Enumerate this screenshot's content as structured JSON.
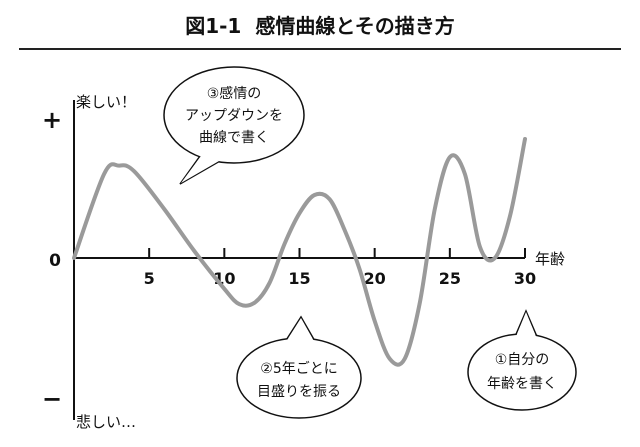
{
  "figure": {
    "number": "図1-1",
    "title": "感情曲線とその描き方"
  },
  "y_axis": {
    "top_label": "楽しい！",
    "top_symbol": "+",
    "zero_label": "0",
    "bottom_symbol": "−",
    "bottom_label": "悲しい…"
  },
  "x_axis": {
    "label": "年齢",
    "ticks": [
      "5",
      "10",
      "15",
      "20",
      "25",
      "30"
    ]
  },
  "bubbles": [
    {
      "line1": "③感情の",
      "line2": "アップダウンを",
      "line3": "曲線で書く"
    },
    {
      "line1": "②5年ごとに",
      "line2": "目盛りを振る"
    },
    {
      "line1": "①自分の",
      "line2": "年齢を書く"
    }
  ],
  "colors": {
    "curve": "#9a9a9a",
    "ink": "#111111"
  },
  "chart_data": {
    "type": "line",
    "x": [
      0,
      2,
      3,
      4,
      6,
      8,
      10,
      11,
      12,
      13,
      14,
      15,
      16,
      17,
      18,
      19,
      20,
      21,
      22,
      23,
      24,
      25,
      26,
      27,
      28,
      29,
      30
    ],
    "y": [
      0,
      0.6,
      0.66,
      0.62,
      0.35,
      0.05,
      -0.22,
      -0.33,
      -0.32,
      -0.18,
      0.1,
      0.32,
      0.45,
      0.42,
      0.2,
      -0.08,
      -0.45,
      -0.72,
      -0.72,
      -0.32,
      0.35,
      0.72,
      0.6,
      0.08,
      0.0,
      0.3,
      0.85
    ],
    "xlim": [
      0,
      30
    ],
    "ylim": [
      -1,
      1
    ]
  }
}
